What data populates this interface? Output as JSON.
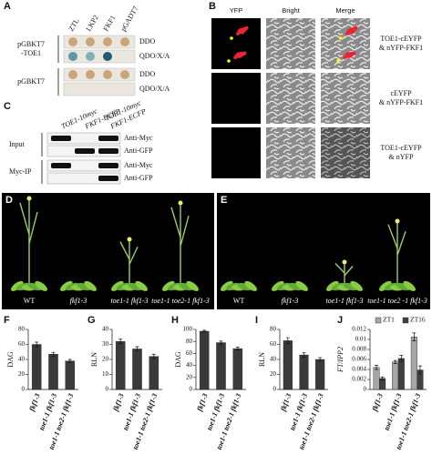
{
  "panel_a": {
    "label": "A",
    "columns": [
      "ZTL",
      "LKP2",
      "FKF1",
      "pGADT7"
    ],
    "rows": [
      {
        "bait": [
          "pGBKT7",
          "-TOE1"
        ],
        "media": [
          "DDO",
          "QDO/X/A"
        ]
      },
      {
        "bait": [
          "pGBKT7"
        ],
        "media": [
          "DDO",
          "QDO/X/A"
        ]
      }
    ]
  },
  "panel_b": {
    "label": "B",
    "columns": [
      "YFP",
      "Bright",
      "Merge"
    ],
    "rows": [
      [
        "TOE1-cEYFP",
        "& nYFP-FKF1"
      ],
      [
        "cEYFP",
        "& nYFP-FKF1"
      ],
      [
        "TOE1-cEYFP",
        "& nYFP"
      ]
    ]
  },
  "panel_c": {
    "label": "C",
    "columns": [
      [
        "TOE1-10myc"
      ],
      [
        "FKF1-ECFP"
      ],
      [
        "TOE1-10myc",
        "FKF1-ECFP"
      ]
    ],
    "groups": [
      {
        "name": "Input",
        "blots": [
          "Anti-Myc",
          "Anti-GFP"
        ]
      },
      {
        "name": "Myc-IP",
        "blots": [
          "Anti-Myc",
          "Anti-GFP"
        ]
      }
    ]
  },
  "panel_d": {
    "label": "D",
    "genotypes": [
      "WT",
      "fkf1-3",
      "toe1-1 fkf1-3",
      "toe1-1 toe2-1 fkf1-3"
    ]
  },
  "panel_e": {
    "label": "E",
    "genotypes": [
      "WT",
      "fkf1-3",
      "toe1-1 fkf1-3",
      "toe1-1 toe2 -1 fkf1-3"
    ]
  },
  "chart_data": [
    {
      "type": "bar",
      "label": "F",
      "y_label": "DAG",
      "categories": [
        "fkf1-3",
        "toe1-1 fkf1-3",
        "toe1-1 toe2-1 fkf1-3"
      ],
      "values": [
        60,
        47,
        38
      ],
      "errors": [
        3,
        2.5,
        2
      ],
      "color": "#3a3a3a",
      "ylim": [
        0,
        80
      ],
      "yticks": [
        0,
        20,
        40,
        60,
        80
      ]
    },
    {
      "type": "bar",
      "label": "G",
      "y_label": "RLN",
      "categories": [
        "fkf1-3",
        "toe1-1 fkf1-3",
        "toe1-1 toe2-1 fkf1-3"
      ],
      "values": [
        32,
        27,
        22
      ],
      "errors": [
        1.5,
        1.5,
        1.5
      ],
      "color": "#3a3a3a",
      "ylim": [
        0,
        40
      ],
      "yticks": [
        0,
        10,
        20,
        30,
        40
      ]
    },
    {
      "type": "bar",
      "label": "H",
      "y_label": "DAG",
      "categories": [
        "fkf1-3",
        "toe1-1 fkf1-3",
        "toe1-1 toe2-1 fkf1-3"
      ],
      "values": [
        97,
        78,
        68
      ],
      "errors": [
        1.5,
        2.5,
        2.5
      ],
      "color": "#3a3a3a",
      "ylim": [
        0,
        100
      ],
      "yticks": [
        0,
        20,
        40,
        60,
        80,
        100
      ]
    },
    {
      "type": "bar",
      "label": "I",
      "y_label": "RLN",
      "categories": [
        "fkf1-3",
        "toe1-1 fkf1-3",
        "toe1-1 toe2-1 fkf1-3"
      ],
      "values": [
        65,
        46,
        40
      ],
      "errors": [
        4,
        3,
        2.5
      ],
      "color": "#3a3a3a",
      "ylim": [
        0,
        80
      ],
      "yticks": [
        0,
        20,
        40,
        60,
        80
      ]
    },
    {
      "type": "grouped-bar",
      "label": "J",
      "y_label": "FT/IPP2",
      "categories": [
        "fkf1-3",
        "toe1-1 fkf1-3",
        "toe1-1 toe2-1 fkf1-3"
      ],
      "series": [
        {
          "name": "ZT1",
          "color": "#a6a6a6",
          "values": [
            0.0044,
            0.0055,
            0.0105
          ],
          "errors": [
            0.0004,
            0.0003,
            0.0008
          ]
        },
        {
          "name": "ZT16",
          "color": "#404040",
          "values": [
            0.0022,
            0.0062,
            0.0039
          ],
          "errors": [
            0.0003,
            0.0006,
            0.0008
          ]
        }
      ],
      "ylim": [
        0,
        0.012
      ],
      "yticks": [
        0,
        0.002,
        0.004,
        0.006,
        0.008,
        0.01,
        0.012
      ]
    }
  ]
}
